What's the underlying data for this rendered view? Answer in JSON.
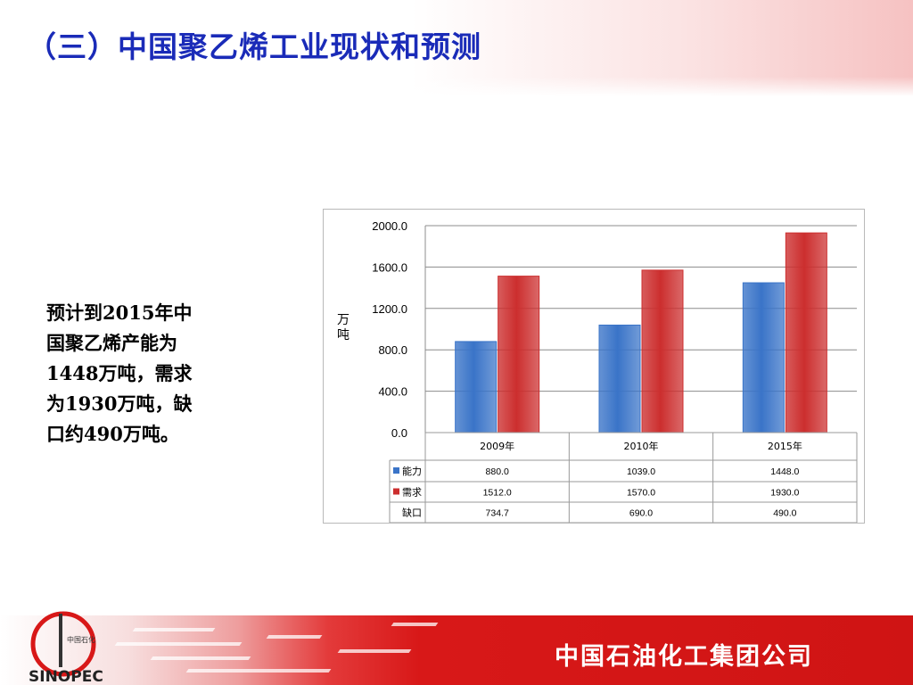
{
  "title": "（三）中国聚乙烯工业现状和预测",
  "note": {
    "line1": " 预计到2015年中",
    "line2": "国聚乙烯产能为",
    "line3": "1448万吨，需求",
    "line4": "为1930万吨，缺",
    "line5": "口约490万吨。"
  },
  "chart_data": {
    "type": "bar",
    "ylabel": "万吨",
    "ylim": [
      0,
      2000
    ],
    "yticks": [
      "0.0",
      "400.0",
      "800.0",
      "1200.0",
      "1600.0",
      "2000.0"
    ],
    "grid": true,
    "categories": [
      "2009年",
      "2010年",
      "2015年"
    ],
    "series": [
      {
        "name": "能力",
        "values": [
          880.0,
          1039.0,
          1448.0
        ],
        "labels": [
          "880.0",
          "1039.0",
          "1448.0"
        ],
        "color": "#3a74c8",
        "plotted": true
      },
      {
        "name": "需求",
        "values": [
          1512.0,
          1570.0,
          1930.0
        ],
        "labels": [
          "1512.0",
          "1570.0",
          "1930.0"
        ],
        "color": "#cc2e2e",
        "plotted": true
      },
      {
        "name": "缺口",
        "values": [
          734.7,
          690.0,
          490.0
        ],
        "labels": [
          "734.7",
          "690.0",
          "490.0"
        ],
        "color": "",
        "plotted": false
      }
    ],
    "data_table": true
  },
  "footer": {
    "company": "中国石油化工集团公司",
    "logo_text": "中国石化",
    "logo_brand": "SINOPEC"
  },
  "colors": {
    "title": "#1a2bb8",
    "accent_red": "#d81818",
    "capacity_blue": "#3a74c8",
    "demand_red": "#cc2e2e"
  }
}
